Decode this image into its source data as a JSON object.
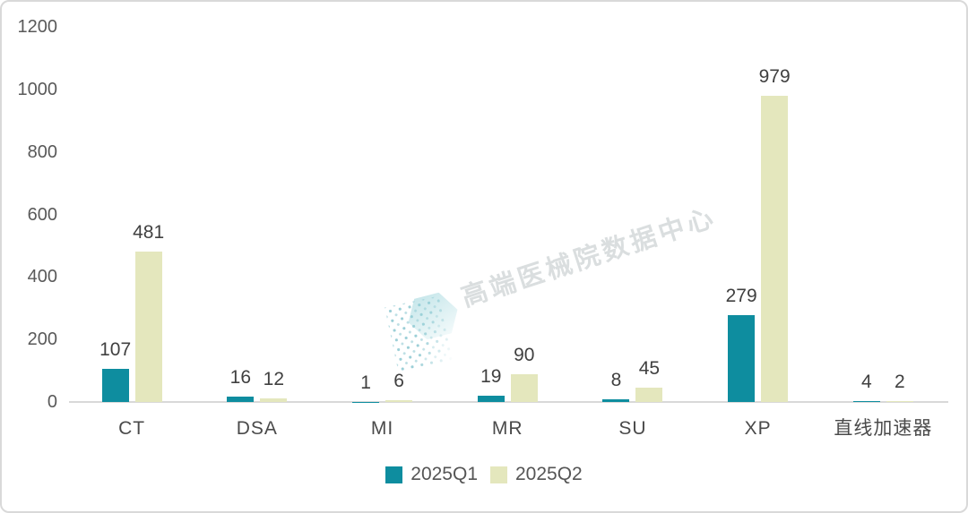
{
  "chart_data": {
    "type": "bar",
    "title": "",
    "categories": [
      "CT",
      "DSA",
      "MI",
      "MR",
      "SU",
      "XP",
      "直线加速器"
    ],
    "series": [
      {
        "name": "2025Q1",
        "color": "#0e8d9f",
        "values": [
          107,
          16,
          1,
          19,
          8,
          279,
          4
        ]
      },
      {
        "name": "2025Q2",
        "color": "#e4e7bd",
        "values": [
          481,
          12,
          6,
          90,
          45,
          979,
          2
        ]
      }
    ],
    "ylim": [
      0,
      1200
    ],
    "yticks": [
      0,
      200,
      400,
      600,
      800,
      1000,
      1200
    ],
    "grid": false,
    "legend_position": "bottom",
    "value_labels": true,
    "axis_line_color": "#d9d9d9"
  },
  "watermark": {
    "text": "高端医械院数据中心",
    "logo": "hex-dots-logo"
  },
  "colors": {
    "background": "#ffffff",
    "border": "#d9d9d9",
    "tick_text": "#595959",
    "value_text": "#404040",
    "category_text": "#4a4a4a",
    "legend_text": "#555555"
  }
}
